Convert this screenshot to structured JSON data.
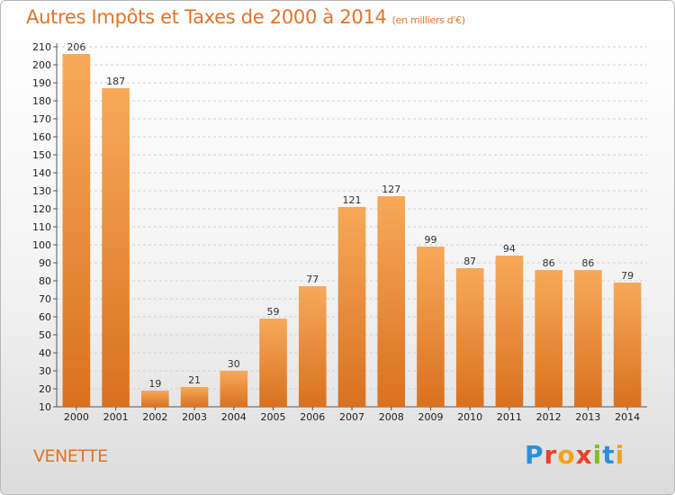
{
  "header": {
    "title": "Autres Impôts et Taxes de 2000 à 2014",
    "unit": "(en milliers d'€)"
  },
  "commune": "VENETTE",
  "logo": {
    "text": "Proxiti"
  },
  "colors": {
    "bar_light": "#f7a95a",
    "bar_dark": "#d9711f",
    "title": "#e0742a",
    "grid": "#d0d0d0"
  },
  "chart_data": {
    "type": "bar",
    "title": "Autres Impôts et Taxes de 2000 à 2014",
    "subtitle": "(en milliers d'€)",
    "categories": [
      "2000",
      "2001",
      "2002",
      "2003",
      "2004",
      "2005",
      "2006",
      "2007",
      "2008",
      "2009",
      "2010",
      "2011",
      "2012",
      "2013",
      "2014"
    ],
    "values": [
      206,
      187,
      19,
      21,
      30,
      59,
      77,
      121,
      127,
      99,
      87,
      94,
      86,
      86,
      79
    ],
    "ylim": [
      10,
      210
    ],
    "ytick_step": 10,
    "grid": true,
    "xlabel": "",
    "ylabel": ""
  }
}
